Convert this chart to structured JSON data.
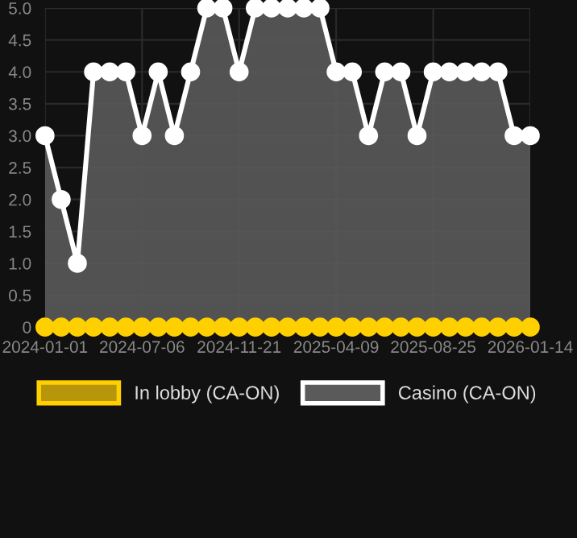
{
  "chart_data": {
    "type": "area",
    "categories": [
      "2024-01-01",
      null,
      null,
      null,
      null,
      null,
      "2024-07-06",
      null,
      null,
      null,
      null,
      null,
      "2024-11-21",
      null,
      null,
      null,
      null,
      null,
      "2025-04-09",
      null,
      null,
      null,
      null,
      null,
      "2025-08-25",
      null,
      null,
      null,
      null,
      null,
      "2026-01-14"
    ],
    "series": [
      {
        "name": "In lobby (CA-ON)",
        "type": "line",
        "color": "#ffd000",
        "values": [
          0,
          0,
          0,
          0,
          0,
          0,
          0,
          0,
          0,
          0,
          0,
          0,
          0,
          0,
          0,
          0,
          0,
          0,
          0,
          0,
          0,
          0,
          0,
          0,
          0,
          0,
          0,
          0,
          0,
          0,
          0
        ]
      },
      {
        "name": "Casino (CA-ON)",
        "color": "#ffffff",
        "values": [
          3,
          2,
          1,
          4,
          4,
          4,
          3,
          4,
          3,
          4,
          5,
          5,
          4,
          5,
          5,
          5,
          5,
          5,
          4,
          4,
          3,
          4,
          4,
          3,
          4,
          4,
          4,
          4,
          4,
          3,
          3
        ]
      }
    ],
    "ylim": [
      0,
      5
    ],
    "yticks": [
      0,
      0.5,
      {
        "value": 1,
        "label": "1.0"
      },
      1.5,
      {
        "value": 2,
        "label": "2.0"
      },
      2.5,
      {
        "value": 3,
        "label": "3.0"
      },
      3.5,
      {
        "value": 4,
        "label": "4.0"
      },
      4.5,
      {
        "value": 5,
        "label": "5.0"
      }
    ],
    "grid": true,
    "legend": "bottom",
    "marker": "circle",
    "line_style": "solid"
  }
}
